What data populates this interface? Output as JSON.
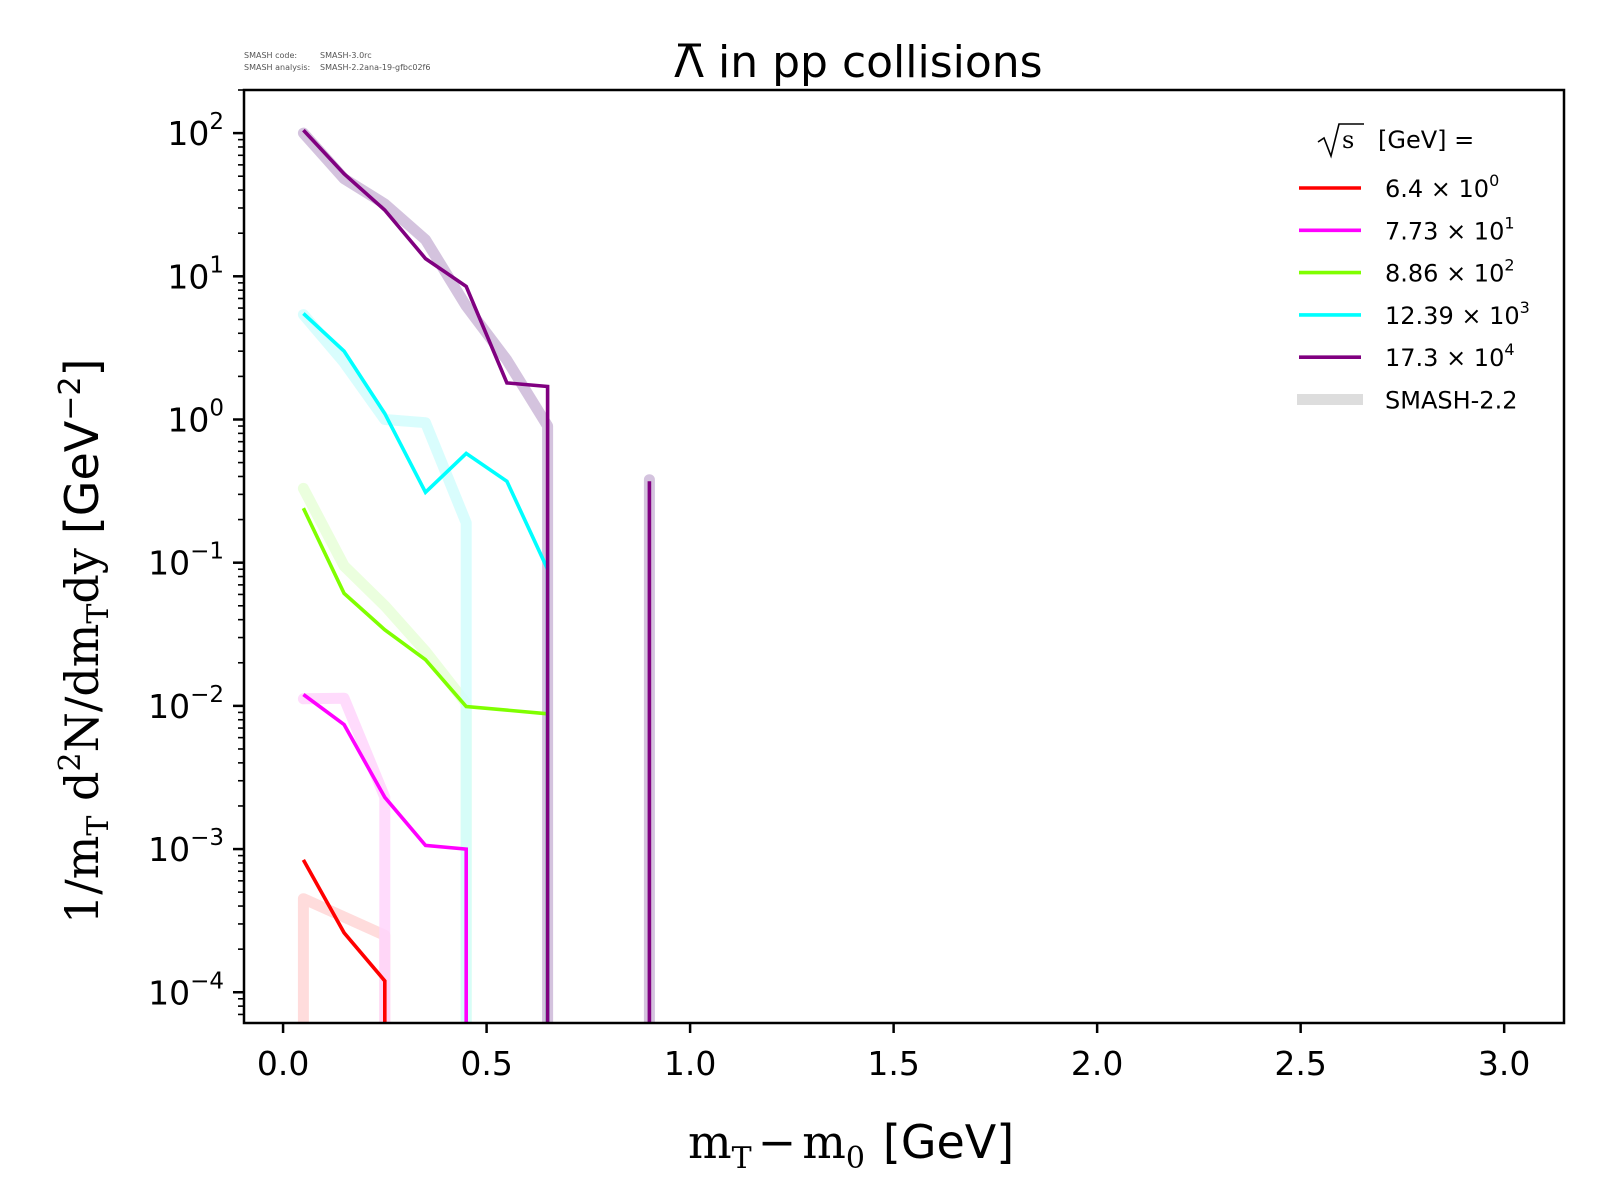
{
  "meta": {
    "code_label": "SMASH code:",
    "code_value": "SMASH-3.0rc",
    "analysis_label": "SMASH analysis:",
    "analysis_value": "SMASH-2.2ana-19-gfbc02f6"
  },
  "chart_data": {
    "type": "line",
    "title": "Λ̄ in pp collisions",
    "title_parts": {
      "symbol": "Λ",
      "rest": "in pp collisions"
    },
    "xlabel": "m_T − m_0 [GeV]",
    "xlabel_parts": {
      "m1": "m",
      "sub1": "T",
      "minus": "−",
      "m2": "m",
      "sub2": "0",
      "unit": "[GeV]"
    },
    "ylabel": "1/m_T d^2N/dm_Tdy [GeV^-2]",
    "ylabel_parts": {
      "p1": "1/m",
      "sub1": "T",
      "p2": " d",
      "sup1": "2",
      "p3": "N/dm",
      "sub2": "T",
      "p4": "dy",
      "unit": "[GeV",
      "sup2": "−2",
      "close": "]"
    },
    "xscale": "linear",
    "yscale": "log",
    "xlim": [
      -0.096,
      3.147
    ],
    "ylim": [
      6.1e-05,
      200
    ],
    "grid": false,
    "x_ticks": [
      0.0,
      0.5,
      1.0,
      1.5,
      2.0,
      2.5,
      3.0
    ],
    "x_tick_labels": [
      "0.0",
      "0.5",
      "1.0",
      "1.5",
      "2.0",
      "2.5",
      "3.0"
    ],
    "y_ticks": [
      100,
      10,
      1,
      0.1,
      0.01,
      0.001,
      0.0001
    ],
    "y_tick_labels": [
      {
        "base": "10",
        "exp": "2"
      },
      {
        "base": "10",
        "exp": "1"
      },
      {
        "base": "10",
        "exp": "0"
      },
      {
        "base": "10",
        "exp": "−1"
      },
      {
        "base": "10",
        "exp": "−2"
      },
      {
        "base": "10",
        "exp": "−3"
      },
      {
        "base": "10",
        "exp": "−4"
      }
    ],
    "legend": {
      "position": "top-right",
      "title_sqrt": "s",
      "title_rest": "[GeV] =",
      "reference_label": "SMASH-2.2",
      "reference_color": "#dddddd"
    },
    "series": [
      {
        "name": "6.4 × 10^0",
        "mantissa": "6.4 × 10",
        "exp": "0",
        "color": "#ff0000",
        "ref_color": "#ffd6d6",
        "x": [
          0.05,
          0.15,
          0.25,
          0.25
        ],
        "y": [
          0.00084,
          0.00026,
          0.00012,
          1e-06
        ],
        "ref_x": [
          0.05,
          0.05,
          0.25,
          0.25
        ],
        "ref_y": [
          1e-06,
          0.00045,
          0.00025,
          1e-06
        ]
      },
      {
        "name": "7.73 × 10^1",
        "mantissa": "7.73 × 10",
        "exp": "1",
        "color": "#ff00ff",
        "ref_color": "#ffd5fb",
        "x": [
          0.05,
          0.15,
          0.25,
          0.35,
          0.45,
          0.45
        ],
        "y": [
          0.012,
          0.0074,
          0.0023,
          0.00106,
          0.001,
          1e-06
        ],
        "ref_x": [
          0.05,
          0.15,
          0.25,
          0.25
        ],
        "ref_y": [
          0.0112,
          0.0113,
          0.0023,
          1e-06
        ]
      },
      {
        "name": "8.86 × 10^2",
        "mantissa": "8.86 × 10",
        "exp": "2",
        "color": "#7fff00",
        "ref_color": "#e8ffd8",
        "x": [
          0.05,
          0.15,
          0.25,
          0.35,
          0.45,
          0.65,
          0.65
        ],
        "y": [
          0.24,
          0.061,
          0.034,
          0.021,
          0.0099,
          0.0088,
          1e-06
        ],
        "ref_x": [
          0.05,
          0.15,
          0.25,
          0.35,
          0.45,
          0.45
        ],
        "ref_y": [
          0.33,
          0.095,
          0.05,
          0.024,
          0.0104,
          1e-06
        ]
      },
      {
        "name": "12.39 × 10^3",
        "mantissa": "12.39 × 10",
        "exp": "3",
        "color": "#00ffff",
        "ref_color": "#d2fdfd",
        "x": [
          0.05,
          0.15,
          0.25,
          0.35,
          0.45,
          0.55,
          0.65,
          0.65
        ],
        "y": [
          5.5,
          3.0,
          1.1,
          0.31,
          0.58,
          0.37,
          0.09,
          1e-06
        ],
        "ref_x": [
          0.05,
          0.15,
          0.25,
          0.35,
          0.45,
          0.45
        ],
        "ref_y": [
          5.4,
          2.5,
          1.0,
          0.95,
          0.19,
          1e-06
        ]
      },
      {
        "name": "17.3 × 10^4",
        "mantissa": "17.3 × 10",
        "exp": "4",
        "color": "#800080",
        "ref_color": "#cdb8d8",
        "x": [
          0.05,
          0.15,
          0.25,
          0.35,
          0.45,
          0.55,
          0.65,
          0.65,
          null,
          0.9,
          0.9
        ],
        "y": [
          105,
          52,
          29,
          13.3,
          8.5,
          1.8,
          1.7,
          1e-06,
          null,
          0.37,
          1e-06
        ],
        "ref_x": [
          0.05,
          0.15,
          0.25,
          0.35,
          0.45,
          0.55,
          0.65,
          0.65,
          null,
          0.9,
          0.9
        ],
        "ref_y": [
          100,
          48,
          32,
          18,
          6.2,
          2.6,
          0.9,
          1e-06,
          null,
          0.38,
          1e-06
        ]
      }
    ]
  }
}
